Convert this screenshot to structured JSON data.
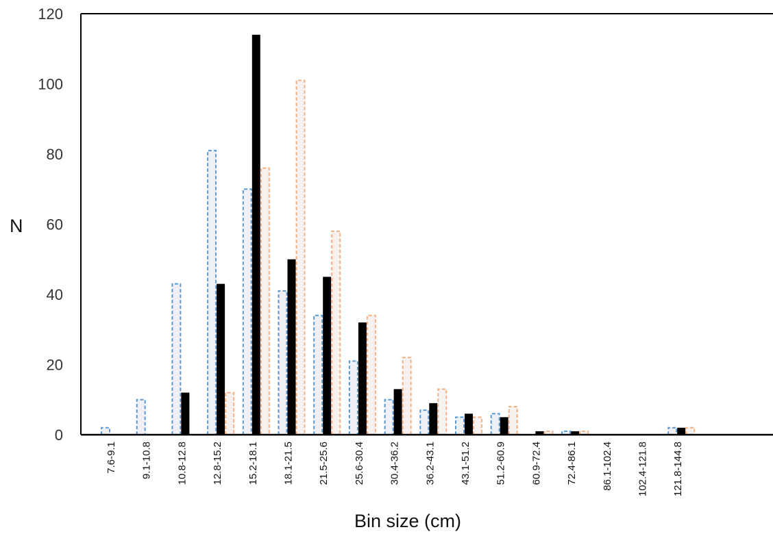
{
  "chart_data": {
    "type": "bar",
    "title": "",
    "xlabel": "Bin size (cm)",
    "ylabel": "N",
    "ylim": [
      0,
      120
    ],
    "yticks": [
      0,
      20,
      40,
      60,
      80,
      100,
      120
    ],
    "grid": false,
    "legend": "none",
    "categories": [
      "7.6-9.1",
      "9.1-10.8",
      "10.8-12.8",
      "12.8-15.2",
      "15.2-18.1",
      "18.1-21.5",
      "21.5-25.6",
      "25.6-30.4",
      "30.4-36.2",
      "36.2-43.1",
      "43.1-51.2",
      "51.2-60.9",
      "60.9-72.4",
      "72.4-86.1",
      "86.1-102.4",
      "102.4-121.8",
      "121.8-144.8"
    ],
    "series": [
      {
        "values": [
          2,
          10,
          43,
          81,
          70,
          41,
          34,
          21,
          10,
          7,
          5,
          6,
          0,
          1,
          0,
          0,
          2
        ],
        "style": "dashed",
        "stroke": "#5b9bd5",
        "fill": "#eef0f5"
      },
      {
        "values": [
          0,
          0,
          12,
          43,
          114,
          50,
          45,
          32,
          13,
          9,
          6,
          5,
          1,
          1,
          0,
          0,
          2
        ],
        "style": "solid",
        "stroke": "#000000",
        "fill": "#000000"
      },
      {
        "values": [
          0,
          0,
          0,
          12,
          76,
          101,
          58,
          34,
          22,
          13,
          5,
          8,
          1,
          1,
          0,
          0,
          2
        ],
        "style": "dashed",
        "stroke": "#f4b183",
        "fill": "#f6f0ee"
      }
    ]
  }
}
